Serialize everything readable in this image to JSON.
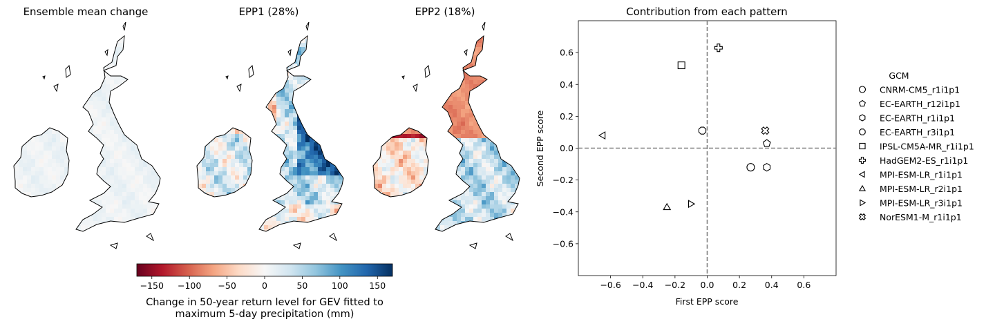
{
  "maps": [
    {
      "title": "Ensemble mean change",
      "mode": "mean"
    },
    {
      "title": "EPP1 (28%)",
      "mode": "epp1"
    },
    {
      "title": "EPP2 (18%)",
      "mode": "epp2"
    }
  ],
  "colorbar": {
    "ticks": [
      "−150",
      "−100",
      "−50",
      "0",
      "50",
      "100",
      "150"
    ],
    "tick_values": [
      -150,
      -100,
      -50,
      0,
      50,
      100,
      150
    ],
    "range": [
      -170,
      170
    ],
    "label_line1": "Change in 50-year return level for GEV fitted to",
    "label_line2": "maximum 5-day precipitation (mm)",
    "colormap": "RdBu"
  },
  "chart_data": {
    "type": "scatter",
    "title": "Contribution from each pattern",
    "xlabel": "First EPP score",
    "ylabel": "Second EPP score",
    "xlim": [
      -0.8,
      0.8
    ],
    "ylim": [
      -0.8,
      0.8
    ],
    "xticks": [
      -0.6,
      -0.4,
      -0.2,
      0.0,
      0.2,
      0.4,
      0.6
    ],
    "xtick_labels": [
      "−0.6",
      "−0.4",
      "−0.2",
      "0.0",
      "0.2",
      "0.4",
      "0.6"
    ],
    "yticks": [
      -0.6,
      -0.4,
      -0.2,
      0.0,
      0.2,
      0.4,
      0.6
    ],
    "ytick_labels": [
      "−0.6",
      "−0.4",
      "−0.2",
      "0.0",
      "0.2",
      "0.4",
      "0.6"
    ],
    "reference_lines": {
      "x": 0,
      "y": 0,
      "style": "dashed",
      "color": "#808080"
    },
    "legend_title": "GCM",
    "legend_placement": "right, outside",
    "series": [
      {
        "name": "CNRM-CM5_r1i1p1",
        "marker": "circle",
        "x": 0.27,
        "y": -0.12
      },
      {
        "name": "EC-EARTH_r12i1p1",
        "marker": "pentagon",
        "x": 0.37,
        "y": 0.03
      },
      {
        "name": "EC-EARTH_r1i1p1",
        "marker": "hexagon",
        "x": 0.37,
        "y": -0.12
      },
      {
        "name": "EC-EARTH_r3i1p1",
        "marker": "octagon",
        "x": -0.03,
        "y": 0.11
      },
      {
        "name": "IPSL-CM5A-MR_r1i1p1",
        "marker": "square",
        "x": -0.16,
        "y": 0.52
      },
      {
        "name": "HadGEM2-ES_r1i1p1",
        "marker": "plus",
        "x": 0.07,
        "y": 0.63
      },
      {
        "name": "MPI-ESM-LR_r1i1p1",
        "marker": "triangle-left",
        "x": -0.65,
        "y": 0.08
      },
      {
        "name": "MPI-ESM-LR_r2i1p1",
        "marker": "triangle-up",
        "x": -0.25,
        "y": -0.37
      },
      {
        "name": "MPI-ESM-LR_r3i1p1",
        "marker": "triangle-right",
        "x": -0.1,
        "y": -0.35
      },
      {
        "name": "NorESM1-M_r1i1p1",
        "marker": "x-filled",
        "x": 0.36,
        "y": 0.11
      }
    ]
  }
}
